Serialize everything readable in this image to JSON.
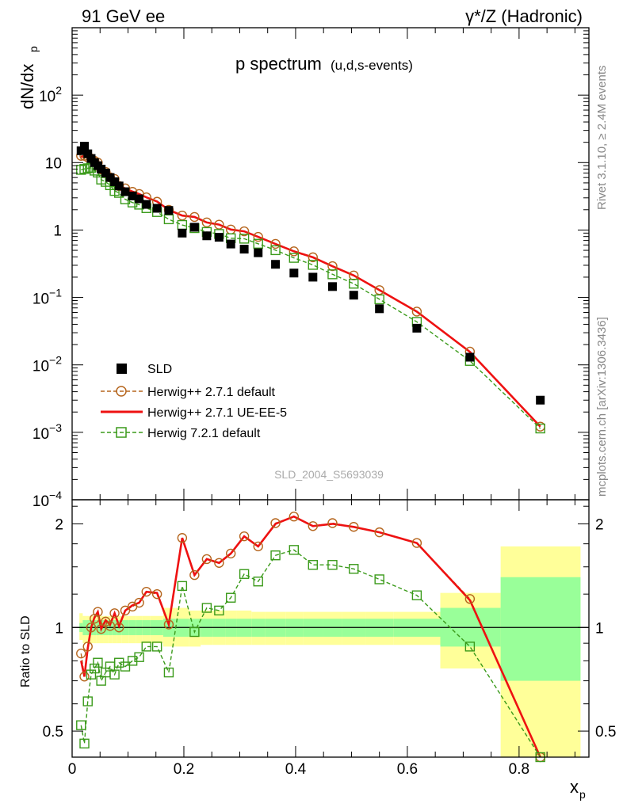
{
  "header": {
    "left": "91 GeV ee",
    "right": "γ*/Z (Hadronic)"
  },
  "side_text": {
    "top": "Rivet 3.1.10, ≥ 2.4M events",
    "bottom": "mcplots.cern.ch [arXiv:1306.3436]"
  },
  "chart_data": {
    "type": "scatter",
    "title": "p spectrum",
    "subtitle": "(u,d,s-events)",
    "watermark": "SLD_2004_S5693039",
    "ylabel": "dN/dx",
    "ylabel_sub": "p",
    "ratio_ylabel": "Ratio to SLD",
    "xlabel": "x",
    "xlabel_sub": "p",
    "xlim": [
      0,
      0.925
    ],
    "ylim": [
      0.0001,
      1000
    ],
    "yscale": "log",
    "ratio_ylim": [
      0.42,
      2.35
    ],
    "ratio_yscale": "log",
    "legend_position": "bottom-left",
    "x_ticks": [
      "0",
      "0.2",
      "0.4",
      "0.6",
      "0.8"
    ],
    "x_tick_values": [
      0,
      0.2,
      0.4,
      0.6,
      0.8
    ],
    "y_ticks": [
      {
        "v": 1000,
        "base": "",
        "exp": ""
      },
      {
        "v": 100,
        "base": "10",
        "exp": "2"
      },
      {
        "v": 10,
        "base": "10",
        "exp": ""
      },
      {
        "v": 1,
        "base": "1",
        "exp": ""
      },
      {
        "v": 0.1,
        "base": "10",
        "exp": "−1"
      },
      {
        "v": 0.01,
        "base": "10",
        "exp": "−2"
      },
      {
        "v": 0.001,
        "base": "10",
        "exp": "−3"
      },
      {
        "v": 0.0001,
        "base": "10",
        "exp": "−4"
      }
    ],
    "ratio_ticks": [
      {
        "v": 2,
        "label": "2"
      },
      {
        "v": 1,
        "label": "1"
      },
      {
        "v": 0.5,
        "label": "0.5"
      }
    ],
    "x": [
      0.016,
      0.022,
      0.028,
      0.034,
      0.04,
      0.046,
      0.052,
      0.06,
      0.068,
      0.076,
      0.084,
      0.095,
      0.108,
      0.12,
      0.133,
      0.152,
      0.173,
      0.197,
      0.219,
      0.241,
      0.263,
      0.284,
      0.308,
      0.333,
      0.364,
      0.397,
      0.431,
      0.466,
      0.504,
      0.55,
      0.617,
      0.712,
      0.838
    ],
    "bin_edges": [
      0.013,
      0.019,
      0.025,
      0.031,
      0.037,
      0.043,
      0.049,
      0.056,
      0.064,
      0.072,
      0.08,
      0.089,
      0.101,
      0.114,
      0.126,
      0.14,
      0.163,
      0.185,
      0.209,
      0.23,
      0.252,
      0.274,
      0.295,
      0.321,
      0.346,
      0.382,
      0.413,
      0.449,
      0.483,
      0.525,
      0.575,
      0.659,
      0.767,
      0.91
    ],
    "band_inner": [
      0.97,
      0.95,
      0.95,
      0.95,
      0.95,
      0.95,
      0.95,
      0.95,
      0.95,
      0.95,
      0.95,
      0.95,
      0.95,
      0.95,
      0.95,
      0.95,
      0.94,
      0.94,
      0.94,
      0.94,
      0.94,
      0.94,
      0.94,
      0.94,
      0.94,
      0.94,
      0.94,
      0.94,
      0.94,
      0.94,
      0.94,
      0.88,
      0.7
    ],
    "band_inner_hi": [
      1.03,
      1.05,
      1.05,
      1.05,
      1.05,
      1.05,
      1.05,
      1.05,
      1.05,
      1.05,
      1.05,
      1.05,
      1.05,
      1.05,
      1.05,
      1.05,
      1.06,
      1.06,
      1.06,
      1.06,
      1.06,
      1.06,
      1.06,
      1.06,
      1.06,
      1.06,
      1.06,
      1.06,
      1.06,
      1.06,
      1.06,
      1.14,
      1.4
    ],
    "band_outer_lo": [
      0.92,
      0.9,
      0.9,
      0.9,
      0.9,
      0.9,
      0.9,
      0.9,
      0.9,
      0.9,
      0.9,
      0.9,
      0.9,
      0.9,
      0.9,
      0.9,
      0.88,
      0.88,
      0.88,
      0.89,
      0.89,
      0.89,
      0.89,
      0.89,
      0.89,
      0.89,
      0.89,
      0.89,
      0.89,
      0.89,
      0.89,
      0.76,
      0.42
    ],
    "band_outer_hi": [
      1.1,
      1.08,
      1.08,
      1.08,
      1.08,
      1.08,
      1.08,
      1.08,
      1.08,
      1.08,
      1.08,
      1.08,
      1.08,
      1.08,
      1.08,
      1.08,
      1.14,
      1.14,
      1.12,
      1.12,
      1.12,
      1.12,
      1.12,
      1.11,
      1.11,
      1.11,
      1.11,
      1.11,
      1.11,
      1.11,
      1.11,
      1.26,
      1.72
    ],
    "series": [
      {
        "name": "SLD",
        "style": "data",
        "color": "#000000",
        "values": [
          15,
          17.5,
          13.5,
          11.5,
          10,
          9,
          8,
          7,
          6,
          5.2,
          4.5,
          3.7,
          3.2,
          2.9,
          2.4,
          2.1,
          1.95,
          0.9,
          1.1,
          0.82,
          0.78,
          0.62,
          0.52,
          0.46,
          0.31,
          0.23,
          0.2,
          0.145,
          0.108,
          0.068,
          0.035,
          0.013,
          0.003
        ]
      },
      {
        "name": "Herwig++ 2.7.1 default",
        "style": "circle",
        "color": "#b5651d",
        "ratio": [
          0.84,
          0.72,
          0.88,
          1.0,
          1.06,
          1.11,
          0.99,
          1.04,
          1.01,
          1.1,
          1.0,
          1.12,
          1.15,
          1.18,
          1.27,
          1.25,
          1.02,
          1.82,
          1.42,
          1.58,
          1.54,
          1.64,
          1.84,
          1.72,
          2.01,
          2.1,
          1.97,
          2.01,
          1.96,
          1.89,
          1.76,
          1.21,
          0.405
        ]
      },
      {
        "name": "Herwig++ 2.7.1 UE-EE-5",
        "style": "line",
        "color": "#ee1111",
        "ratio": [
          0.8,
          0.72,
          0.87,
          1.0,
          1.07,
          1.11,
          0.99,
          1.05,
          1.02,
          1.1,
          1.01,
          1.12,
          1.16,
          1.18,
          1.27,
          1.26,
          1.02,
          1.82,
          1.42,
          1.58,
          1.54,
          1.64,
          1.84,
          1.72,
          2.0,
          2.1,
          1.97,
          2.0,
          1.96,
          1.89,
          1.76,
          1.2,
          0.405
        ]
      },
      {
        "name": "Herwig 7.2.1 default",
        "style": "square",
        "color": "#3a9a1a",
        "ratio": [
          0.52,
          0.46,
          0.61,
          0.73,
          0.76,
          0.79,
          0.7,
          0.74,
          0.77,
          0.73,
          0.79,
          0.77,
          0.8,
          0.82,
          0.88,
          0.88,
          0.74,
          1.32,
          0.97,
          1.14,
          1.12,
          1.22,
          1.43,
          1.36,
          1.62,
          1.68,
          1.52,
          1.52,
          1.48,
          1.38,
          1.24,
          0.88,
          0.38
        ]
      }
    ]
  }
}
